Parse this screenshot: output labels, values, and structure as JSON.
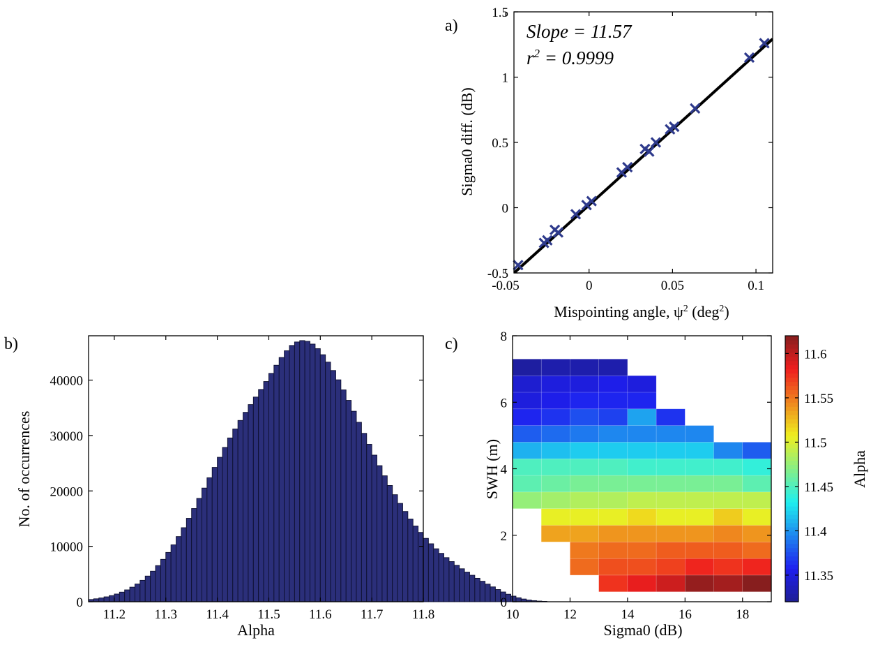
{
  "chart_data": [
    {
      "panel_label": "a)",
      "type": "scatter",
      "xlabel": "Mispointing angle, ψ² (deg²)",
      "xlabel_parts": {
        "pre": "Mispointing angle, ψ",
        "sup1": "2",
        "mid": " (deg",
        "sup2": "2",
        "post": ")"
      },
      "ylabel": "Sigma0 diff. (dB)",
      "xlim": [
        -0.045,
        0.11
      ],
      "ylim": [
        -0.5,
        1.5
      ],
      "xticks": [
        -0.05,
        0,
        0.05,
        0.1
      ],
      "xtick_labels": [
        "-0.05",
        "0",
        "0.05",
        "0.1"
      ],
      "yticks": [
        -0.5,
        0,
        0.5,
        1,
        1.5
      ],
      "ytick_labels": [
        "-0.5",
        "0",
        "0.5",
        "1",
        "1.5"
      ],
      "annotation_slope": "Slope = 11.57",
      "annotation_r2_base": "r",
      "annotation_r2_sup": "2",
      "annotation_r2_rest": " = 0.9999",
      "fit_line": {
        "slope": 11.57,
        "intercept": 0.02
      },
      "marker_color": "#2e3a8c",
      "points": [
        {
          "x": -0.0425,
          "y": -0.44
        },
        {
          "x": -0.027,
          "y": -0.27
        },
        {
          "x": -0.025,
          "y": -0.25
        },
        {
          "x": -0.0205,
          "y": -0.17
        },
        {
          "x": -0.0185,
          "y": -0.19
        },
        {
          "x": -0.008,
          "y": -0.05
        },
        {
          "x": -0.0015,
          "y": 0.02
        },
        {
          "x": 0.0015,
          "y": 0.05
        },
        {
          "x": 0.0195,
          "y": 0.27
        },
        {
          "x": 0.023,
          "y": 0.31
        },
        {
          "x": 0.0335,
          "y": 0.45
        },
        {
          "x": 0.036,
          "y": 0.43
        },
        {
          "x": 0.04,
          "y": 0.5
        },
        {
          "x": 0.0485,
          "y": 0.6
        },
        {
          "x": 0.051,
          "y": 0.62
        },
        {
          "x": 0.0635,
          "y": 0.76
        },
        {
          "x": 0.096,
          "y": 1.15
        },
        {
          "x": 0.105,
          "y": 1.26
        }
      ]
    },
    {
      "panel_label": "b)",
      "type": "bar",
      "xlabel": "Alpha",
      "ylabel": "No. of occurrences",
      "xlim": [
        11.15,
        11.8
      ],
      "ylim": [
        0,
        48000
      ],
      "xticks": [
        11.2,
        11.3,
        11.4,
        11.5,
        11.6,
        11.7,
        11.8
      ],
      "xtick_labels": [
        "11.2",
        "11.3",
        "11.4",
        "11.5",
        "11.6",
        "11.7",
        "11.8"
      ],
      "yticks": [
        0,
        10000,
        20000,
        30000,
        40000
      ],
      "ytick_labels": [
        "0",
        "10000",
        "20000",
        "30000",
        "40000"
      ],
      "bar_color": "#2b2f7a",
      "bin_start": 11.15,
      "bin_width": 0.01,
      "values": [
        400,
        530,
        690,
        880,
        1110,
        1390,
        1730,
        2140,
        2630,
        3200,
        3860,
        4630,
        5510,
        6520,
        7650,
        8900,
        10270,
        11760,
        13360,
        15050,
        16820,
        18650,
        20510,
        22380,
        24240,
        26070,
        27850,
        29560,
        31180,
        32720,
        34180,
        35580,
        36940,
        38310,
        39740,
        41210,
        42680,
        44080,
        45300,
        46250,
        46880,
        47130,
        47000,
        46500,
        45680,
        44580,
        43250,
        41730,
        40050,
        38240,
        36340,
        34380,
        32390,
        30390,
        28410,
        26460,
        24560,
        22730,
        20980,
        19320,
        17750,
        16290,
        14930,
        13670,
        12510,
        11440,
        10460,
        9560,
        8730,
        7960,
        7250,
        6580,
        5950,
        5350,
        4780,
        4230,
        3700,
        3180,
        2680,
        2200,
        1760,
        1360,
        1010,
        720,
        490,
        320,
        200,
        120,
        70
      ]
    },
    {
      "panel_label": "c)",
      "type": "heatmap",
      "xlabel": "Sigma0 (dB)",
      "ylabel": "SWH (m)",
      "colorbar_label": "Alpha",
      "xlim": [
        10,
        19
      ],
      "ylim": [
        0,
        8
      ],
      "xticks": [
        10,
        12,
        14,
        16,
        18
      ],
      "xtick_labels": [
        "10",
        "12",
        "14",
        "16",
        "18"
      ],
      "yticks": [
        0,
        2,
        4,
        6,
        8
      ],
      "ytick_labels": [
        "0",
        "2",
        "4",
        "6",
        "8"
      ],
      "clim": [
        11.32,
        11.62
      ],
      "cticks": [
        11.35,
        11.4,
        11.45,
        11.5,
        11.55,
        11.6
      ],
      "ctick_labels": [
        "11.35",
        "11.4",
        "11.45",
        "11.5",
        "11.55",
        "11.6"
      ],
      "colormap": [
        "#00008f",
        "#0000ff",
        "#0080ff",
        "#00ffff",
        "#80ff80",
        "#ffff00",
        "#ff8000",
        "#ff0000",
        "#800000"
      ],
      "x_edges": [
        10,
        11,
        12,
        13,
        14,
        15,
        16,
        17,
        18,
        19
      ],
      "y_edges": [
        0.3,
        0.8,
        1.3,
        1.8,
        2.3,
        2.8,
        3.3,
        3.8,
        4.3,
        4.8,
        5.3,
        5.8,
        6.3,
        6.8,
        7.3
      ],
      "cells": [
        [
          null,
          null,
          null,
          11.575,
          11.585,
          11.595,
          11.615,
          11.61,
          11.62
        ],
        [
          null,
          null,
          11.555,
          11.565,
          11.565,
          11.57,
          11.58,
          11.575,
          11.58
        ],
        [
          null,
          null,
          11.55,
          11.555,
          11.555,
          11.56,
          11.56,
          11.56,
          11.555
        ],
        [
          null,
          11.535,
          11.535,
          11.54,
          11.54,
          11.54,
          11.54,
          11.545,
          11.54
        ],
        [
          null,
          11.505,
          11.505,
          11.505,
          11.515,
          11.505,
          11.505,
          11.52,
          11.505
        ],
        [
          11.475,
          11.48,
          11.485,
          11.485,
          11.49,
          11.49,
          11.49,
          11.49,
          11.49
        ],
        [
          11.455,
          11.46,
          11.465,
          11.465,
          11.465,
          11.465,
          11.465,
          11.465,
          11.455
        ],
        [
          11.45,
          11.45,
          11.45,
          11.45,
          11.445,
          11.445,
          11.445,
          11.445,
          11.44
        ],
        [
          11.41,
          11.415,
          11.42,
          11.42,
          11.42,
          11.42,
          11.42,
          11.395,
          11.38
        ],
        [
          11.38,
          11.385,
          11.39,
          11.395,
          11.395,
          11.395,
          11.395,
          null,
          null
        ],
        [
          11.36,
          11.365,
          11.375,
          11.37,
          11.405,
          11.365,
          null,
          null,
          null
        ],
        [
          11.35,
          11.355,
          11.36,
          11.36,
          11.36,
          null,
          null,
          null,
          null
        ],
        [
          11.345,
          11.35,
          11.35,
          11.355,
          11.35,
          null,
          null,
          null,
          null
        ],
        [
          11.325,
          11.33,
          11.33,
          11.33,
          null,
          null,
          null,
          null,
          null
        ]
      ]
    }
  ]
}
